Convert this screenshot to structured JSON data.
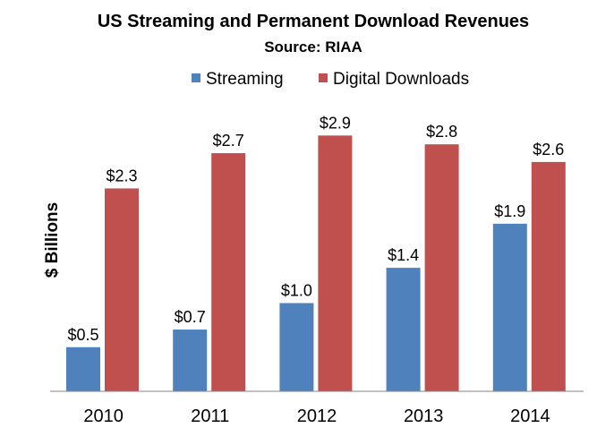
{
  "chart_data": {
    "type": "bar",
    "title": "US Streaming and Permanent Download Revenues",
    "subtitle": "Source: RIAA",
    "xlabel": "",
    "ylabel": "$ Billions",
    "categories": [
      "2010",
      "2011",
      "2012",
      "2013",
      "2014"
    ],
    "series": [
      {
        "name": "Streaming",
        "color": "#4F81BD",
        "values": [
          0.5,
          0.7,
          1.0,
          1.4,
          1.9
        ],
        "labels": [
          "$0.5",
          "$0.7",
          "$1.0",
          "$1.4",
          "$1.9"
        ]
      },
      {
        "name": "Digital Downloads",
        "color": "#C0504D",
        "values": [
          2.3,
          2.7,
          2.9,
          2.8,
          2.6
        ],
        "labels": [
          "$2.3",
          "$2.7",
          "$2.9",
          "$2.8",
          "$2.6"
        ]
      }
    ],
    "ylim": [
      0,
      3.3
    ],
    "grid": false,
    "legend_position": "top"
  }
}
